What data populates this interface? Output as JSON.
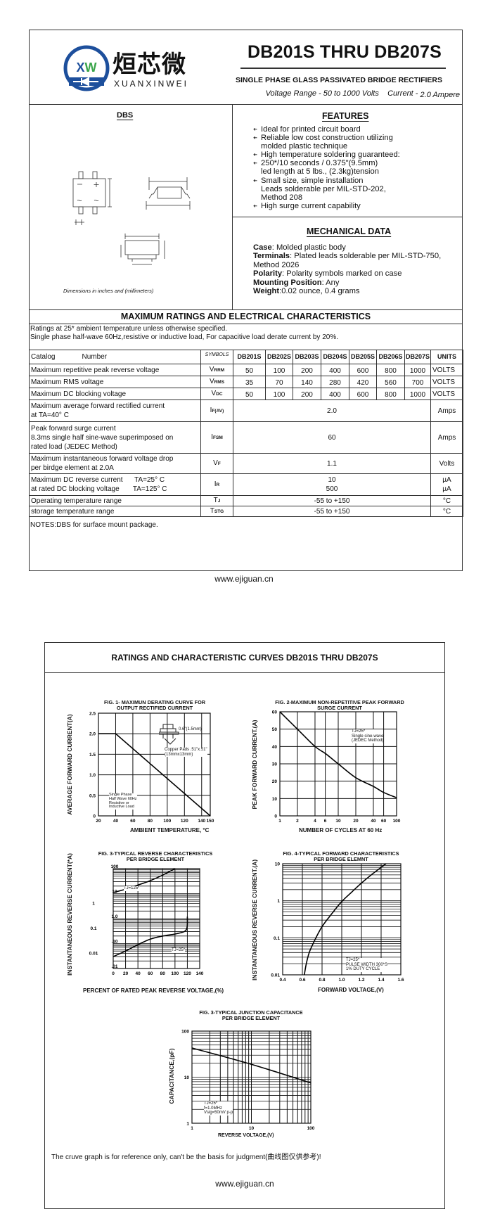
{
  "page1": {
    "logo": {
      "mark": "XW",
      "cn_name": "烜芯微",
      "en_name": "XUANXINWEI",
      "colors": {
        "blue": "#1d4f9c",
        "green": "#3aa54a"
      }
    },
    "title": "DB201S THRU DB207S",
    "subtitle": "SINGLE PHASE GLASS PASSIVATED BRIDGE RECTIFIERS",
    "voltage_range": "Voltage Range - 50 to 1000 Volts",
    "current_label": "Current -",
    "current_value": "2.0 Ampere",
    "package": {
      "title": "DBS",
      "caption": "Dimensions in inches and (millimeters)"
    },
    "features": {
      "title": "FEATURES",
      "items": [
        [
          "Ideal for printed circuit board"
        ],
        [
          "Reliable low cost construction utilizing",
          "molded plastic technique"
        ],
        [
          "High temperature soldering guaranteed:"
        ],
        [
          "250*/10 seconds / 0.375\"(9.5mm)",
          "led length at 5 lbs., (2.3kg)tension"
        ],
        [
          "Small size, simple installation",
          "Leads solderable per MIL-STD-202,",
          "Method 208"
        ],
        [
          "High surge current capability"
        ]
      ]
    },
    "mechanical": {
      "title": "MECHANICAL DATA",
      "items": [
        {
          "key": "Case",
          "value": ": Molded plastic body"
        },
        {
          "key": "Terminals",
          "value": ": Plated leads solderable per MIL-STD-750,"
        },
        {
          "key": "",
          "value": " Method 2026"
        },
        {
          "key": "Polarity",
          "value": ": Polarity symbols marked on case"
        },
        {
          "key": "Mounting Position",
          "value": ": Any"
        },
        {
          "key": "Weight",
          "value": ":0.02 ounce, 0.4 grams"
        }
      ]
    },
    "ratings": {
      "title": "MAXIMUM RATINGS AND ELECTRICAL CHARACTERISTICS",
      "notes": [
        "Ratings at 25* ambient temperature unless otherwise specified.",
        "Single phase half-wave 60Hz,resistive or inductive load, For capacitive load derate current by 20%."
      ],
      "header": {
        "catalog": "Catalog",
        "number": "Number",
        "symbols": "SYMBOLS",
        "parts": [
          "DB201S",
          "DB202S",
          "DB203S",
          "DB204S",
          "DB205S",
          "DB206S",
          "DB207S"
        ],
        "units": "UNITS"
      },
      "rows": [
        {
          "label": [
            "Maximum repetitive peak reverse voltage"
          ],
          "sym": "V",
          "sub": "RRM",
          "values": [
            "50",
            "100",
            "200",
            "400",
            "600",
            "800",
            "1000"
          ],
          "unit": [
            "VOLTS"
          ]
        },
        {
          "label": [
            "Maximum RMS voltage"
          ],
          "sym": "V",
          "sub": "RMS",
          "values": [
            "35",
            "70",
            "140",
            "280",
            "420",
            "560",
            "700"
          ],
          "unit": [
            "VOLTS"
          ]
        },
        {
          "label": [
            "Maximum DC blocking voltage"
          ],
          "sym": "V",
          "sub": "DC",
          "values": [
            "50",
            "100",
            "200",
            "400",
            "600",
            "800",
            "1000"
          ],
          "unit": [
            "VOLTS"
          ]
        },
        {
          "label": [
            "Maximum average forward rectified current",
            "at TA=40° C"
          ],
          "sym": "I",
          "sub": "F(AV)",
          "value": [
            "2.0"
          ],
          "unit": [
            "Amps"
          ]
        },
        {
          "label": [
            "Peak forward surge current",
            "8.3ms single half sine-wave superimposed on",
            "rated load (JEDEC Method)"
          ],
          "sym": "I",
          "sub": "FSM",
          "value": [
            "60"
          ],
          "unit": [
            "Amps"
          ]
        },
        {
          "label": [
            "Maximum instantaneous forward voltage drop",
            "per birdge element at 2.0A"
          ],
          "sym": "V",
          "sub": "F",
          "value": [
            "1.1"
          ],
          "unit": [
            "Volts"
          ]
        },
        {
          "label": [
            "Maximum DC reverse current      TA=25° C",
            "at rated DC blocking voltage       TA=125° C"
          ],
          "sym": "I",
          "sub": "R",
          "value": [
            "10",
            "500"
          ],
          "unit": [
            "µA",
            "µA"
          ]
        },
        {
          "label": [
            "Operating temperature range"
          ],
          "sym": "T",
          "sub": "J",
          "value": [
            "-55 to +150"
          ],
          "unit": [
            "°C"
          ]
        },
        {
          "label": [
            "storage temperature range"
          ],
          "sym": "T",
          "sub": "STG",
          "value": [
            "-55 to +150"
          ],
          "unit": [
            "°C"
          ]
        }
      ],
      "footnote": "NOTES:DBS for surface mount package."
    },
    "website": "www.ejiguan.cn"
  },
  "page2": {
    "title": "RATINGS AND CHARACTERISTIC CURVES DB201S THRU DB207S",
    "disclaimer": "The cruve graph is for reference only, can't be the basis for judgment(曲线图仅供参考)!",
    "website": "www.ejiguan.cn"
  },
  "chart_data": [
    {
      "type": "line",
      "title": [
        "FIG. 1- MAXIMUN DERATING CURVE FOR",
        "OUTPUT RECTIFIED CURRENT"
      ],
      "xlabel": "AMBIENT TEMPERATURE, °C",
      "ylabel": "AVERAGE FORWARD CURRENT(A)",
      "xscale": "linear",
      "yscale": "linear",
      "xlim": [
        20,
        150
      ],
      "ylim": [
        0,
        2.5
      ],
      "xticks": [
        20,
        40,
        60,
        80,
        100,
        120,
        140,
        150
      ],
      "xtick_labels": [
        "20",
        "40",
        "60",
        "80",
        "100",
        "120",
        "140",
        "150"
      ],
      "yticks": [
        0,
        0.5,
        1.0,
        1.5,
        2.0,
        2.5
      ],
      "ytick_labels": [
        "0",
        "0.5",
        "1.0",
        "1.5",
        "2.0",
        "2.5"
      ],
      "grid": true,
      "series": [
        {
          "x": [
            20,
            40,
            150
          ],
          "y": [
            2.0,
            2.0,
            0
          ]
        }
      ],
      "annotations": [
        "0.6\"(1.5mm)",
        "Copper Pads .51\"x.51\"",
        "(13mmx13mm)",
        "Single Phase",
        "Half Wave 60Hz",
        "Resistive or",
        "Inductive Load"
      ]
    },
    {
      "type": "line",
      "title": [
        "FIG. 2-MAXIMUM NON-REPETITIVE PEAK FORWARD",
        "SURGE CURRENT"
      ],
      "xlabel": "NUMBER OF CYCLES AT 60 Hz",
      "ylabel": "PEAK  FORWARD CURRENT.(A)",
      "xscale": "log",
      "yscale": "linear",
      "xlim": [
        1,
        100
      ],
      "ylim": [
        0,
        60
      ],
      "xticks": [
        1,
        2,
        4,
        6,
        10,
        20,
        40,
        60,
        100
      ],
      "xtick_labels": [
        "1",
        "2",
        "4",
        "6",
        "10",
        "20",
        "40",
        "60",
        "100"
      ],
      "yticks": [
        0,
        10,
        20,
        30,
        40,
        50,
        60
      ],
      "ytick_labels": [
        "0",
        "10",
        "20",
        "30",
        "40",
        "50",
        "60"
      ],
      "grid": true,
      "series": [
        {
          "x": [
            1,
            2,
            4,
            6,
            10,
            20,
            40,
            60,
            100
          ],
          "y": [
            60,
            50,
            40,
            36,
            30,
            22,
            17,
            13.5,
            10.5
          ]
        }
      ],
      "annotations": [
        "TJ=25*",
        "Single sine-wave",
        "(JEDEC Method)"
      ]
    },
    {
      "type": "line",
      "title": [
        "FIG. 3-TYPICAL REVERSE CHARACTERISTICS",
        "PER BRIDGE ELEMENT"
      ],
      "xlabel": "PERCENT OF RATED PEAK REVERSE VOLTAGE,(%)",
      "ylabel": "INSTANTANEOUS REVERSE CURRENT(*A)",
      "xscale": "linear",
      "yscale": "log",
      "xlim": [
        0,
        140
      ],
      "ylim": [
        0.01,
        100
      ],
      "xticks": [
        0,
        20,
        40,
        60,
        80,
        100,
        120,
        140
      ],
      "xtick_labels": [
        "0",
        "20",
        "40",
        "60",
        "80",
        "100",
        "120",
        "140"
      ],
      "yticks": [
        100,
        10,
        1,
        0.1,
        0.01
      ],
      "ytick_labels": [
        "100",
        "10",
        "1.0",
        ".10",
        ".01"
      ],
      "yticks_outer": [
        10,
        1,
        0.1
      ],
      "ytick_outer_labels": [
        "1",
        "0.1",
        "0.01"
      ],
      "grid": true,
      "series": [
        {
          "name": "TJ=125*",
          "x": [
            0,
            20,
            40,
            60,
            80,
            100
          ],
          "y": [
            11,
            15,
            22,
            33,
            55,
            100
          ]
        },
        {
          "name": "TJ=25*",
          "x": [
            0,
            20,
            40,
            60,
            80,
            100,
            115,
            119,
            120,
            120
          ],
          "y": [
            0.03,
            0.05,
            0.09,
            0.15,
            0.2,
            0.24,
            0.3,
            0.4,
            0.6,
            1.2
          ]
        }
      ],
      "annotations": []
    },
    {
      "type": "line",
      "title": [
        "FIG. 4-TYPICAL FORWARD CHARACTERISTICS",
        "PER BRIDGE ELEMNT"
      ],
      "xlabel": "FORWARD VOLTAGE,(V)",
      "ylabel": "INSTANTANEOUS REVERSE CURRENT.(A)",
      "xscale": "linear",
      "yscale": "log",
      "xlim": [
        0.4,
        1.6
      ],
      "ylim": [
        0.01,
        10
      ],
      "xticks": [
        0.4,
        0.6,
        0.8,
        1.0,
        1.2,
        1.4,
        1.6
      ],
      "xtick_labels": [
        "0.4",
        "0.6",
        "0.8",
        "1.0",
        "1.2",
        "1.4",
        "1.6"
      ],
      "yticks": [
        10,
        1,
        0.1,
        0.01
      ],
      "ytick_labels": [
        "10",
        "1",
        "0.1",
        "0.01"
      ],
      "grid": true,
      "series": [
        {
          "x": [
            0.62,
            0.64,
            0.67,
            0.72,
            0.8,
            0.9,
            1.0,
            1.1,
            1.2,
            1.3,
            1.45
          ],
          "y": [
            0.01,
            0.02,
            0.04,
            0.08,
            0.2,
            0.45,
            0.95,
            1.7,
            3,
            5,
            10
          ]
        }
      ],
      "annotations": [
        "TJ=25*",
        "PULSE WIDTH 300*S",
        "1% DUTY CYCLE"
      ]
    },
    {
      "type": "line",
      "title": [
        "FIG. 3-TYPICAL JUNCTION CAPACITANCE",
        "PER BRIDGE ELEMENT"
      ],
      "xlabel": "REVERSE VOLTAGE,(V)",
      "ylabel": "CAPACITANCE,(pF)",
      "xscale": "log",
      "yscale": "log",
      "xlim": [
        1,
        100
      ],
      "ylim": [
        1,
        100
      ],
      "xticks": [
        1,
        10,
        100
      ],
      "xtick_labels": [
        "1",
        "10",
        "100"
      ],
      "yticks": [
        1,
        10,
        100
      ],
      "ytick_labels": [
        "1",
        "10",
        "100"
      ],
      "grid": true,
      "series": [
        {
          "x": [
            1,
            10,
            100
          ],
          "y": [
            43,
            19,
            7.5
          ]
        }
      ],
      "annotations": [
        "TJ=25*",
        "f=1.0MHz",
        "Vsig=50mV p-p"
      ]
    }
  ]
}
